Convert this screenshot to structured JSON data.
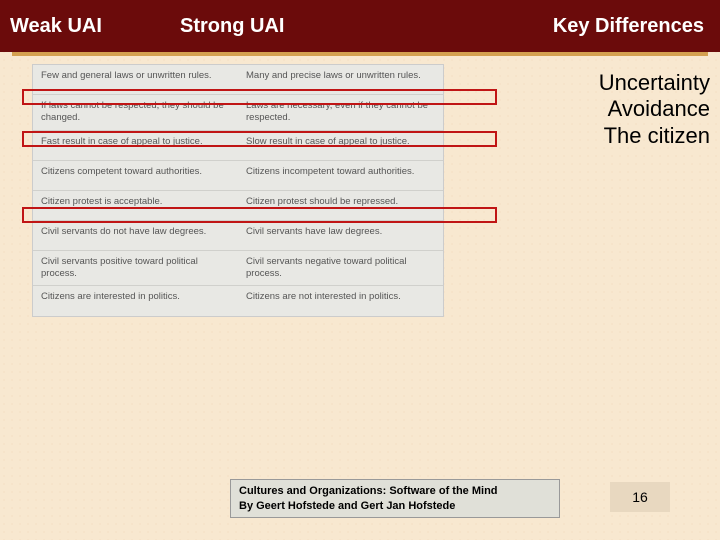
{
  "header": {
    "col1": "Weak UAI",
    "col2": "Strong UAI",
    "col3": "Key Differences"
  },
  "subtitle": {
    "line1": "Uncertainty",
    "line2": "Avoidance",
    "line3": "The citizen"
  },
  "table": {
    "rows": [
      {
        "left": "Few and general laws or unwritten rules.",
        "right": "Many and precise laws or unwritten rules."
      },
      {
        "left": "If laws cannot be respected, they should be changed.",
        "right": "Laws are necessary, even if they cannot be respected."
      },
      {
        "left": "Fast result in case of appeal to justice.",
        "right": "Slow result in case of appeal to justice."
      },
      {
        "left": "Citizens competent toward authorities.",
        "right": "Citizens incompetent toward authorities."
      },
      {
        "left": "Citizen protest is acceptable.",
        "right": "Citizen protest should be repressed."
      },
      {
        "left": "Civil servants do not have law degrees.",
        "right": "Civil servants have law degrees."
      },
      {
        "left": "Civil servants positive toward political process.",
        "right": "Civil servants negative toward political process."
      },
      {
        "left": "Citizens are interested in politics.",
        "right": "Citizens are not interested in politics."
      }
    ]
  },
  "footer": {
    "line1": "Cultures and Organizations: Software of the Mind",
    "line2": "By Geert Hofstede and Gert Jan Hofstede"
  },
  "page_number": "16"
}
